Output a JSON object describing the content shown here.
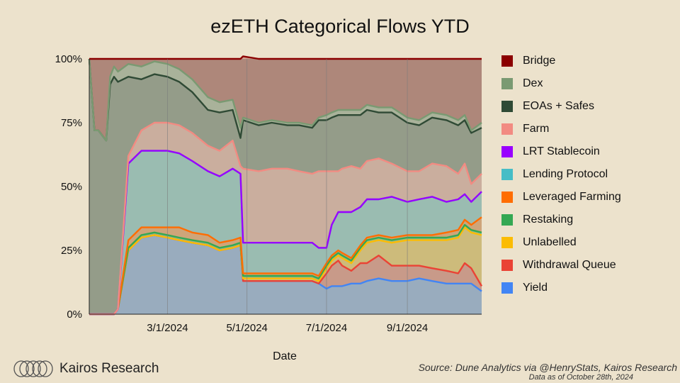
{
  "chart_data": {
    "type": "area",
    "title": "ezETH Categorical Flows YTD",
    "xlabel": "Date",
    "ylabel": "",
    "stacked": "percent",
    "ylim": [
      0,
      100
    ],
    "y_ticks": [
      "0%",
      "25%",
      "50%",
      "75%",
      "100%"
    ],
    "x_ticks": [
      "3/1/2024",
      "5/1/2024",
      "7/1/2024",
      "9/1/2024"
    ],
    "x_tick_dates": [
      "2024-03-01",
      "2024-05-01",
      "2024-07-01",
      "2024-09-01"
    ],
    "x_range": [
      "2024-01-01",
      "2024-10-28"
    ],
    "grid": "vertical",
    "legend_position": "right",
    "x": [
      "2024-01-01",
      "2024-01-05",
      "2024-01-08",
      "2024-01-14",
      "2024-01-17",
      "2024-01-20",
      "2024-01-23",
      "2024-01-31",
      "2024-02-10",
      "2024-02-20",
      "2024-03-01",
      "2024-03-10",
      "2024-03-20",
      "2024-04-01",
      "2024-04-10",
      "2024-04-20",
      "2024-04-26",
      "2024-04-28",
      "2024-05-10",
      "2024-05-20",
      "2024-06-01",
      "2024-06-10",
      "2024-06-20",
      "2024-06-25",
      "2024-07-01",
      "2024-07-05",
      "2024-07-10",
      "2024-07-13",
      "2024-07-20",
      "2024-07-27",
      "2024-08-01",
      "2024-08-10",
      "2024-08-20",
      "2024-09-01",
      "2024-09-10",
      "2024-09-20",
      "2024-10-01",
      "2024-10-10",
      "2024-10-15",
      "2024-10-20",
      "2024-10-28"
    ],
    "series": [
      {
        "name": "Yield",
        "color": "#4285f4",
        "values": [
          0,
          0,
          0,
          0,
          0,
          0,
          2,
          25,
          30,
          31,
          30,
          29,
          28,
          27,
          25,
          26,
          27,
          13,
          13,
          13,
          13,
          13,
          13,
          12,
          10,
          11,
          11,
          11,
          12,
          12,
          13,
          14,
          13,
          13,
          14,
          13,
          12,
          12,
          12,
          12,
          9
        ]
      },
      {
        "name": "Withdrawal Queue",
        "color": "#ea4335",
        "values": [
          0,
          0,
          0,
          0,
          0,
          0,
          0,
          0,
          0,
          0,
          0,
          0,
          0,
          0,
          0,
          0,
          0,
          0,
          0,
          0,
          0,
          0,
          0,
          0,
          6,
          8,
          10,
          8,
          5,
          8,
          7,
          9,
          6,
          6,
          5,
          5,
          5,
          4,
          8,
          6,
          2
        ]
      },
      {
        "name": "Unlabelled",
        "color": "#fbbc04",
        "values": [
          0,
          0,
          0,
          0,
          0,
          0,
          0,
          0,
          0,
          0,
          0,
          0,
          0,
          0,
          0,
          0,
          0,
          1,
          1,
          1,
          1,
          1,
          1,
          1,
          2,
          2,
          2,
          3,
          3,
          5,
          8,
          6,
          9,
          10,
          10,
          11,
          12,
          14,
          14,
          14,
          20
        ]
      },
      {
        "name": "Restaking",
        "color": "#34a853",
        "values": [
          0,
          0,
          0,
          0,
          0,
          0,
          0,
          1,
          1,
          1,
          1,
          1,
          1,
          1,
          1,
          1,
          1,
          1,
          1,
          1,
          1,
          1,
          1,
          1,
          1,
          1,
          1,
          1,
          1,
          1,
          1,
          1,
          1,
          1,
          1,
          1,
          1,
          1,
          1,
          1,
          1
        ]
      },
      {
        "name": "Leveraged Farming",
        "color": "#ff6d01",
        "values": [
          0,
          0,
          0,
          0,
          0,
          0,
          0,
          3,
          3,
          2,
          3,
          4,
          3,
          3,
          2,
          2,
          2,
          1,
          1,
          1,
          1,
          1,
          1,
          1,
          1,
          1,
          1,
          1,
          1,
          1,
          1,
          1,
          1,
          1,
          1,
          1,
          2,
          2,
          2,
          2,
          6
        ]
      },
      {
        "name": "Lending Protocol",
        "color": "#46bdc6",
        "values": [
          0,
          0,
          0,
          0,
          0,
          0,
          0,
          30,
          30,
          30,
          30,
          29,
          28,
          25,
          26,
          28,
          25,
          12,
          12,
          12,
          12,
          12,
          12,
          11,
          6,
          12,
          15,
          16,
          18,
          15,
          15,
          14,
          16,
          13,
          14,
          15,
          12,
          12,
          10,
          9,
          10
        ]
      },
      {
        "name": "LRT Stablecoin",
        "color": "#9900ff",
        "values": [
          0,
          0,
          0,
          0,
          0,
          0,
          0,
          0,
          0,
          0,
          0,
          0,
          0,
          0,
          0,
          0,
          0,
          0,
          0,
          0,
          0,
          0,
          0,
          0,
          0,
          0,
          0,
          0,
          0,
          0,
          0,
          0,
          0,
          0,
          0,
          0,
          0,
          0,
          0,
          0,
          0
        ]
      },
      {
        "name": "Farm",
        "color": "#f28b82",
        "values": [
          0,
          0,
          0,
          0,
          0,
          0,
          0,
          3,
          8,
          11,
          11,
          11,
          11,
          10,
          10,
          11,
          3,
          29,
          28,
          29,
          29,
          28,
          27,
          30,
          30,
          21,
          16,
          17,
          18,
          15,
          15,
          16,
          13,
          12,
          11,
          13,
          14,
          10,
          12,
          7,
          7
        ]
      },
      {
        "name": "EOAs + Safes",
        "color": "#2f4a35",
        "values": [
          100,
          72,
          72,
          68,
          90,
          93,
          89,
          31,
          20,
          19,
          18,
          17,
          16,
          14,
          15,
          12,
          11,
          19,
          18,
          18,
          17,
          18,
          18,
          20,
          20,
          21,
          22,
          21,
          20,
          21,
          20,
          18,
          20,
          19,
          18,
          18,
          18,
          19,
          17,
          20,
          18
        ]
      },
      {
        "name": "Dex",
        "color": "#7a9a72",
        "values": [
          0,
          0,
          0,
          0,
          3,
          4,
          4,
          5,
          5,
          5,
          5,
          5,
          5,
          5,
          4,
          4,
          4,
          1,
          1,
          1,
          1,
          1,
          1,
          1,
          2,
          2,
          2,
          2,
          2,
          2,
          2,
          2,
          2,
          2,
          2,
          2,
          2,
          2,
          2,
          1,
          2
        ]
      },
      {
        "name": "Bridge",
        "color": "#8b0000",
        "values": [
          0,
          28,
          28,
          32,
          7,
          3,
          5,
          2,
          3,
          1,
          2,
          4,
          8,
          15,
          17,
          16,
          27,
          24,
          25,
          24,
          25,
          25,
          26,
          23,
          22,
          21,
          20,
          20,
          20,
          20,
          18,
          19,
          19,
          23,
          24,
          21,
          22,
          24,
          22,
          28,
          25
        ]
      }
    ]
  },
  "legend": [
    "Bridge",
    "Dex",
    "EOAs + Safes",
    "Farm",
    "LRT Stablecoin",
    "Lending Protocol",
    "Leveraged Farming",
    "Restaking",
    "Unlabelled",
    "Withdrawal Queue",
    "Yield"
  ],
  "brand": {
    "name": "Kairos Research"
  },
  "source": {
    "text": "Source: Dune Analytics via @HenryStats, Kairos Research",
    "as_of": "Data as of October 28th, 2024"
  }
}
